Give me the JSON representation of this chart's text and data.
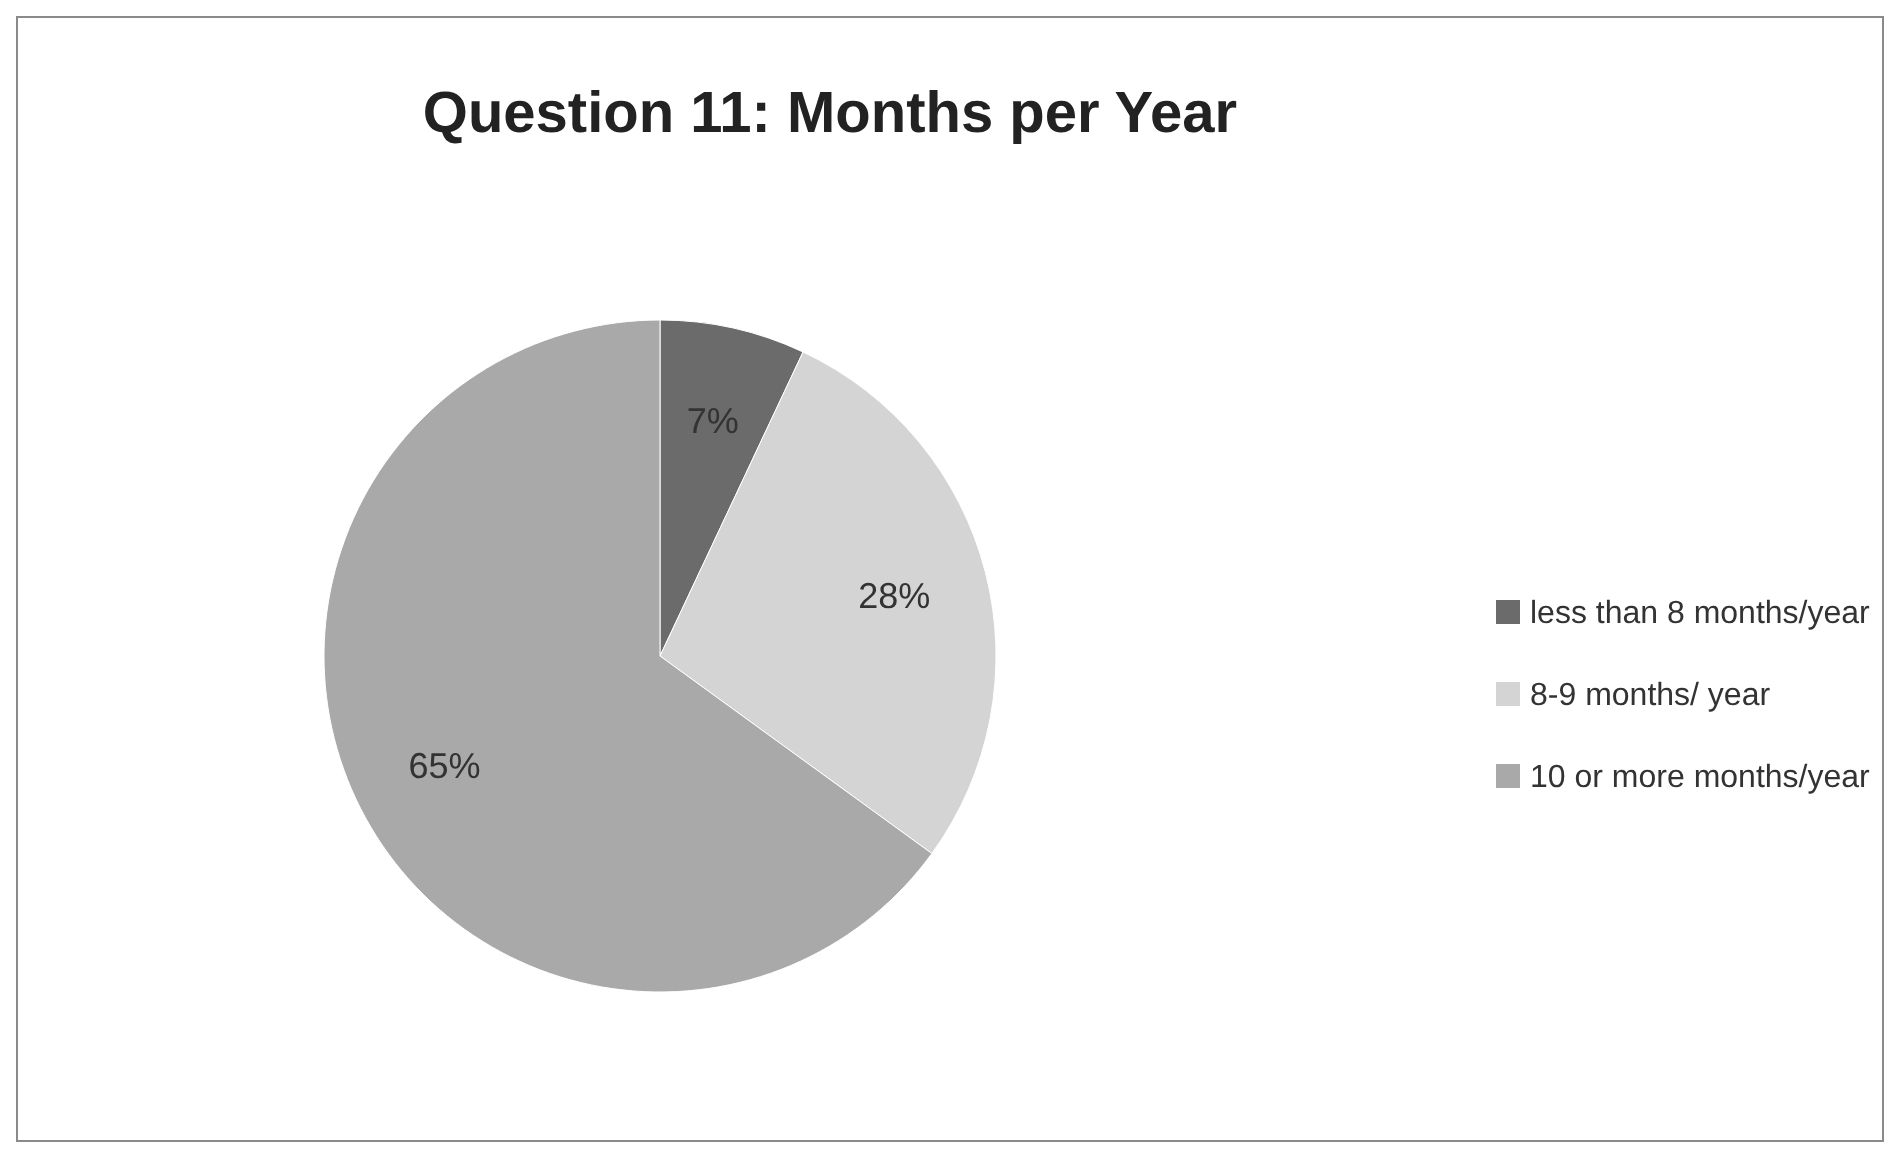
{
  "chart_data": {
    "type": "pie",
    "title": "Question 11: Months per Year",
    "categories": [
      "less than 8 months/year",
      "8-9 months/ year",
      "10 or more months/year"
    ],
    "values": [
      7,
      28,
      65
    ],
    "colors": [
      "#6b6b6b",
      "#d4d4d4",
      "#a9a9a9"
    ],
    "value_labels": [
      "7%",
      "28%",
      "65%"
    ],
    "legend": "right"
  }
}
